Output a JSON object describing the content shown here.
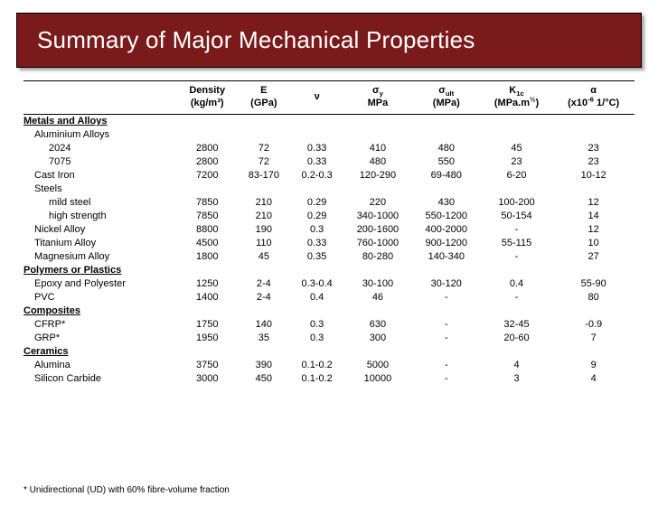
{
  "title": "Summary of Major Mechanical Properties",
  "columns": {
    "density_l1": "Density",
    "density_l2": "(kg/m³)",
    "e_l1": "E",
    "e_l2": "(GPa)",
    "nu": "ν",
    "sigmay_l1": "σ",
    "sigmay_sub": "y",
    "sigmay_l2": "MPa",
    "sigmault_l1": "σ",
    "sigmault_sub": "ult",
    "sigmault_l2": "(MPa)",
    "k1c_l1": "K",
    "k1c_sub": "1c",
    "k1c_l2": "(MPa.m",
    "k1c_l2_sup": "½",
    "k1c_l2_end": ")",
    "alpha_l1": "α",
    "alpha_l2_a": "(x10",
    "alpha_l2_sup": "-6",
    "alpha_l2_b": " 1/°C)"
  },
  "rows": [
    {
      "type": "cat",
      "label": "Metals and Alloys"
    },
    {
      "type": "sub",
      "label": "Aluminium Alloys"
    },
    {
      "type": "ind2",
      "label": "2024",
      "d": "2800",
      "e": "72",
      "nu": "0.33",
      "sy": "410",
      "su": "480",
      "k": "45",
      "a": "23"
    },
    {
      "type": "ind2",
      "label": "7075",
      "d": "2800",
      "e": "72",
      "nu": "0.33",
      "sy": "480",
      "su": "550",
      "k": "23",
      "a": "23"
    },
    {
      "type": "ind1",
      "label": "Cast Iron",
      "d": "7200",
      "e": "83-170",
      "nu": "0.2-0.3",
      "sy": "120-290",
      "su": "69-480",
      "k": "6-20",
      "a": "10-12"
    },
    {
      "type": "sub",
      "label": "Steels"
    },
    {
      "type": "ind2",
      "label": "mild steel",
      "d": "7850",
      "e": "210",
      "nu": "0.29",
      "sy": "220",
      "su": "430",
      "k": "100-200",
      "a": "12"
    },
    {
      "type": "ind2",
      "label": "high strength",
      "d": "7850",
      "e": "210",
      "nu": "0.29",
      "sy": "340-1000",
      "su": "550-1200",
      "k": "50-154",
      "a": "14"
    },
    {
      "type": "ind1",
      "label": "Nickel Alloy",
      "d": "8800",
      "e": "190",
      "nu": "0.3",
      "sy": "200-1600",
      "su": "400-2000",
      "k": "-",
      "a": "12"
    },
    {
      "type": "ind1",
      "label": "Titanium Alloy",
      "d": "4500",
      "e": "110",
      "nu": "0.33",
      "sy": "760-1000",
      "su": "900-1200",
      "k": "55-115",
      "a": "10"
    },
    {
      "type": "ind1",
      "label": "Magnesium Alloy",
      "d": "1800",
      "e": "45",
      "nu": "0.35",
      "sy": "80-280",
      "su": "140-340",
      "k": "-",
      "a": "27"
    },
    {
      "type": "cat",
      "label": "Polymers or Plastics"
    },
    {
      "type": "ind1",
      "label": "Epoxy and Polyester",
      "d": "1250",
      "e": "2-4",
      "nu": "0.3-0.4",
      "sy": "30-100",
      "su": "30-120",
      "k": "0.4",
      "a": "55-90"
    },
    {
      "type": "ind1",
      "label": "PVC",
      "d": "1400",
      "e": "2-4",
      "nu": "0.4",
      "sy": "46",
      "su": "-",
      "k": "-",
      "a": "80"
    },
    {
      "type": "cat",
      "label": "Composites"
    },
    {
      "type": "ind1",
      "label": "CFRP*",
      "d": "1750",
      "e": "140",
      "nu": "0.3",
      "sy": "630",
      "su": "-",
      "k": "32-45",
      "a": "-0.9"
    },
    {
      "type": "ind1",
      "label": "GRP*",
      "d": "1950",
      "e": "35",
      "nu": "0.3",
      "sy": "300",
      "su": "-",
      "k": "20-60",
      "a": "7"
    },
    {
      "type": "cat",
      "label": "Ceramics"
    },
    {
      "type": "ind1",
      "label": "Alumina",
      "d": "3750",
      "e": "390",
      "nu": "0.1-0.2",
      "sy": "5000",
      "su": "-",
      "k": "4",
      "a": "9"
    },
    {
      "type": "ind1",
      "label": "Silicon Carbide",
      "d": "3000",
      "e": "450",
      "nu": "0.1-0.2",
      "sy": "10000",
      "su": "-",
      "k": "3",
      "a": "4"
    }
  ],
  "footnote": "* Unidirectional (UD) with 60% fibre-volume fraction"
}
